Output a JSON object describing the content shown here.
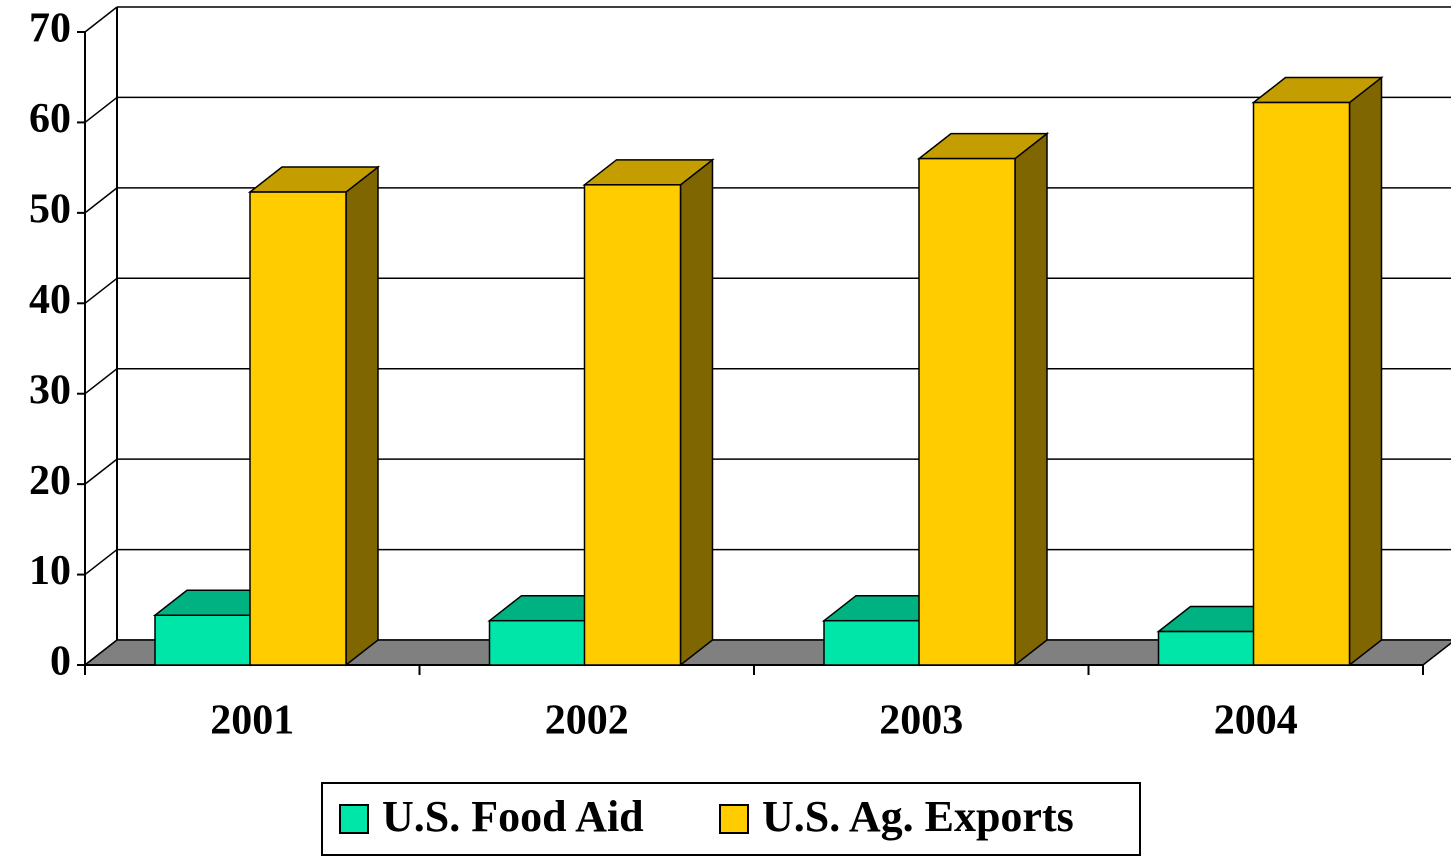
{
  "chart_data": {
    "type": "bar",
    "categories": [
      "2001",
      "2002",
      "2003",
      "2004"
    ],
    "series": [
      {
        "name": "U.S. Food Aid",
        "color": "#00e6a8",
        "values": [
          5.5,
          4.9,
          4.9,
          3.7
        ]
      },
      {
        "name": "U.S. Ag. Exports",
        "color": "#ffcc00",
        "values": [
          52.3,
          53.1,
          56.0,
          62.2
        ]
      }
    ],
    "ylim": [
      0,
      70
    ],
    "yticks": [
      0,
      10,
      20,
      30,
      40,
      50,
      60,
      70
    ],
    "grid": true,
    "legend": "bottom"
  }
}
